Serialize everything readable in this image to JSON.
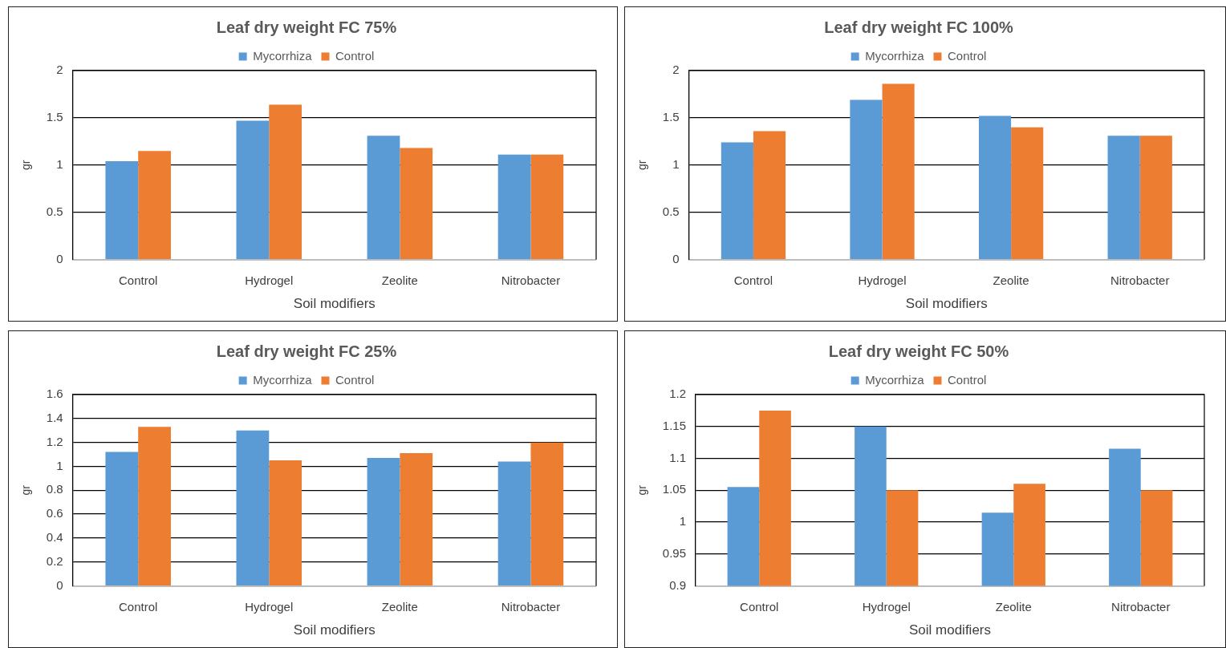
{
  "chart_data": [
    {
      "type": "bar",
      "title": "Leaf dry weight FC 75%",
      "xlabel": "Soil modifiers",
      "ylabel": "gr",
      "categories": [
        "Control",
        "Hydrogel",
        "Zeolite",
        "Nitrobacter"
      ],
      "series": [
        {
          "name": "Mycorrhiza",
          "color": "#5b9bd5",
          "values": [
            1.04,
            1.47,
            1.31,
            1.11
          ]
        },
        {
          "name": "Control",
          "color": "#ed7d31",
          "values": [
            1.15,
            1.64,
            1.18,
            1.11
          ]
        }
      ],
      "ylim": [
        0,
        2
      ],
      "yticks": [
        0,
        0.5,
        1,
        1.5,
        2
      ],
      "grid": "y",
      "legend": "top"
    },
    {
      "type": "bar",
      "title": "Leaf dry weight FC 100%",
      "xlabel": "Soil modifiers",
      "ylabel": "gr",
      "categories": [
        "Control",
        "Hydrogel",
        "Zeolite",
        "Nitrobacter"
      ],
      "series": [
        {
          "name": "Mycorrhiza",
          "color": "#5b9bd5",
          "values": [
            1.24,
            1.69,
            1.52,
            1.31
          ]
        },
        {
          "name": "Control",
          "color": "#ed7d31",
          "values": [
            1.36,
            1.86,
            1.4,
            1.31
          ]
        }
      ],
      "ylim": [
        0,
        2
      ],
      "yticks": [
        0,
        0.5,
        1,
        1.5,
        2
      ],
      "grid": "y",
      "legend": "top"
    },
    {
      "type": "bar",
      "title": "Leaf dry weight FC 25%",
      "xlabel": "Soil modifiers",
      "ylabel": "gr",
      "categories": [
        "Control",
        "Hydrogel",
        "Zeolite",
        "Nitrobacter"
      ],
      "series": [
        {
          "name": "Mycorrhiza",
          "color": "#5b9bd5",
          "values": [
            1.12,
            1.3,
            1.07,
            1.04
          ]
        },
        {
          "name": "Control",
          "color": "#ed7d31",
          "values": [
            1.33,
            1.05,
            1.11,
            1.2
          ]
        }
      ],
      "ylim": [
        0,
        1.6
      ],
      "yticks": [
        0,
        0.2,
        0.4,
        0.6,
        0.8,
        1,
        1.2,
        1.4,
        1.6
      ],
      "grid": "y",
      "legend": "top"
    },
    {
      "type": "bar",
      "title": "Leaf dry weight FC 50%",
      "xlabel": "Soil modifiers",
      "ylabel": "gr",
      "categories": [
        "Control",
        "Hydrogel",
        "Zeolite",
        "Nitrobacter"
      ],
      "series": [
        {
          "name": "Mycorrhiza",
          "color": "#5b9bd5",
          "values": [
            1.055,
            1.15,
            1.015,
            1.115
          ]
        },
        {
          "name": "Control",
          "color": "#ed7d31",
          "values": [
            1.175,
            1.05,
            1.06,
            1.05
          ]
        }
      ],
      "ylim": [
        0.9,
        1.2
      ],
      "yticks": [
        0.9,
        0.95,
        1,
        1.05,
        1.1,
        1.15,
        1.2
      ],
      "grid": "y",
      "legend": "top"
    }
  ]
}
